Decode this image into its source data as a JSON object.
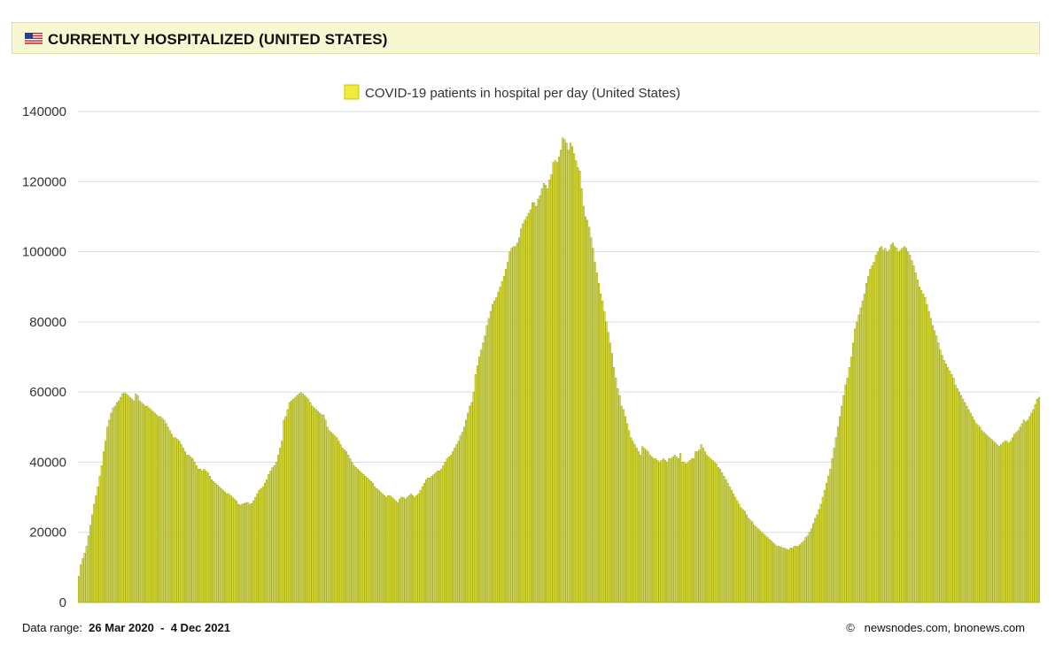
{
  "header": {
    "title": "CURRENTLY HOSPITALIZED (UNITED STATES)",
    "flag_icon": "us-flag-icon"
  },
  "footer": {
    "range_label": "Data range:",
    "range_start": "26 Mar 2020",
    "range_sep": "-",
    "range_end": "4 Dec 2021",
    "copyright_symbol": "©",
    "credit": "newsnodes.com, bnonews.com"
  },
  "colors": {
    "bar_fill": "#dde03a",
    "bar_stroke": "#9aa01a",
    "legend_fill": "#f0ec3c",
    "header_bg": "#f7f7d2",
    "grid": "#dddddd"
  },
  "chart_data": {
    "type": "bar",
    "legend": "COVID-19 patients in hospital per day (United States)",
    "legend_position": "top-center",
    "ylim": [
      0,
      140000
    ],
    "yticks": [
      "0",
      "20000",
      "40000",
      "60000",
      "80000",
      "100000",
      "120000",
      "140000"
    ],
    "grid": true,
    "x_start_date": "26 Mar 2020",
    "x_end_date": "4 Dec 2021",
    "series": [
      {
        "name": "COVID-19 patients in hospital per day (United States)",
        "values": [
          7500,
          10800,
          12500,
          14000,
          16000,
          19000,
          22000,
          25000,
          28000,
          30500,
          33000,
          36000,
          39000,
          43000,
          46000,
          50000,
          52000,
          54000,
          55500,
          56000,
          57000,
          57500,
          58500,
          59500,
          59800,
          59500,
          59000,
          58500,
          58000,
          57500,
          59500,
          59000,
          57500,
          57000,
          56500,
          56000,
          56000,
          55500,
          55000,
          54500,
          54000,
          53500,
          53000,
          53000,
          52500,
          52000,
          51000,
          50000,
          49000,
          48000,
          47000,
          47000,
          46500,
          46000,
          45000,
          44000,
          43000,
          42000,
          42000,
          41500,
          41000,
          40000,
          39000,
          38000,
          38000,
          37500,
          38000,
          37500,
          37000,
          36000,
          35000,
          34500,
          34000,
          33500,
          33000,
          32500,
          32000,
          31500,
          31000,
          31000,
          30500,
          30000,
          29500,
          29000,
          28000,
          27800,
          28000,
          28200,
          28500,
          28500,
          28000,
          28200,
          29000,
          30000,
          31000,
          32000,
          32500,
          33000,
          34000,
          35000,
          36500,
          37500,
          38500,
          39000,
          40000,
          42000,
          44000,
          46000,
          52000,
          53000,
          55000,
          57000,
          57500,
          58000,
          58500,
          59000,
          59500,
          59800,
          59500,
          59000,
          58500,
          58000,
          57000,
          56000,
          55500,
          55000,
          54500,
          54000,
          53500,
          53500,
          52000,
          50000,
          49000,
          48500,
          48000,
          47500,
          47000,
          46000,
          45000,
          44000,
          43500,
          43000,
          42000,
          41000,
          40000,
          39000,
          38500,
          38000,
          37500,
          37000,
          36500,
          36000,
          35500,
          35000,
          34500,
          34000,
          33000,
          32500,
          32000,
          31500,
          31000,
          30500,
          30000,
          30500,
          30500,
          30000,
          29500,
          29000,
          28500,
          29500,
          30000,
          30000,
          29500,
          30000,
          30500,
          31000,
          30500,
          30000,
          30500,
          31000,
          32000,
          33000,
          34000,
          35000,
          35500,
          35500,
          36000,
          36500,
          37000,
          37500,
          37500,
          38000,
          39000,
          40000,
          41000,
          41500,
          42000,
          43000,
          44000,
          45000,
          46000,
          47500,
          48500,
          50000,
          52000,
          54000,
          56000,
          57000,
          60000,
          65000,
          67500,
          70000,
          72000,
          74000,
          76000,
          79000,
          81000,
          83000,
          85000,
          86000,
          87000,
          88500,
          90000,
          91500,
          93000,
          95000,
          97000,
          100000,
          101000,
          101500,
          101500,
          102500,
          104000,
          106500,
          108000,
          109000,
          110000,
          111000,
          112000,
          114000,
          114000,
          113000,
          115000,
          116000,
          118000,
          119500,
          119000,
          118000,
          120500,
          122000,
          125500,
          126000,
          125500,
          127000,
          129000,
          132500,
          132000,
          131000,
          129000,
          131000,
          130000,
          128000,
          126000,
          124000,
          123000,
          118000,
          113000,
          110000,
          109000,
          107000,
          104000,
          101000,
          97000,
          94000,
          91000,
          88000,
          86000,
          83000,
          80000,
          77000,
          74000,
          71000,
          67000,
          64000,
          61000,
          59000,
          56000,
          55000,
          53000,
          51000,
          49000,
          47000,
          46000,
          45000,
          44000,
          43000,
          42000,
          44500,
          44000,
          43500,
          43000,
          42000,
          41500,
          41000,
          41000,
          40500,
          40000,
          40500,
          41000,
          40500,
          40000,
          41000,
          41000,
          41500,
          42000,
          41500,
          41000,
          42500,
          40000,
          40000,
          39500,
          40000,
          40500,
          41000,
          41000,
          43000,
          43000,
          43500,
          45000,
          44000,
          43000,
          42000,
          41500,
          41000,
          40500,
          40000,
          39500,
          38500,
          38000,
          37000,
          36000,
          35000,
          34000,
          33000,
          32000,
          31000,
          30000,
          29000,
          28000,
          27000,
          26500,
          26000,
          25000,
          24000,
          23500,
          23000,
          22000,
          21500,
          21000,
          20500,
          20000,
          19500,
          19000,
          18500,
          18000,
          17500,
          17000,
          16500,
          16000,
          16000,
          15800,
          15500,
          15500,
          15200,
          15000,
          15500,
          15500,
          16000,
          16000,
          16000,
          16500,
          17000,
          17500,
          18500,
          19000,
          20000,
          21000,
          22500,
          24000,
          25000,
          26500,
          28000,
          30000,
          32000,
          34000,
          36000,
          38000,
          41000,
          44000,
          47000,
          50000,
          53000,
          56000,
          59000,
          62000,
          64000,
          67000,
          70000,
          74000,
          78000,
          80000,
          82000,
          84000,
          86000,
          88000,
          91000,
          93000,
          95000,
          96000,
          97000,
          99000,
          100000,
          101000,
          101500,
          100500,
          101000,
          100000,
          100500,
          102000,
          102500,
          101500,
          101000,
          100000,
          100500,
          101000,
          101500,
          101000,
          100000,
          99000,
          97500,
          96000,
          94000,
          92000,
          90000,
          89000,
          88000,
          87000,
          85000,
          83000,
          81000,
          79000,
          77500,
          76000,
          74000,
          72000,
          70500,
          69000,
          68000,
          67000,
          66000,
          65000,
          64000,
          62000,
          61000,
          60000,
          59000,
          58000,
          57000,
          56000,
          55000,
          54000,
          53000,
          52000,
          51000,
          50500,
          50000,
          49000,
          48500,
          48000,
          47500,
          47000,
          46500,
          46000,
          45500,
          45000,
          44500,
          45000,
          45500,
          46000,
          46000,
          45500,
          46000,
          47000,
          48000,
          48500,
          49000,
          50000,
          51000,
          52000,
          51500,
          52000,
          53000,
          54000,
          55000,
          56500,
          58000,
          58500
        ]
      }
    ]
  }
}
